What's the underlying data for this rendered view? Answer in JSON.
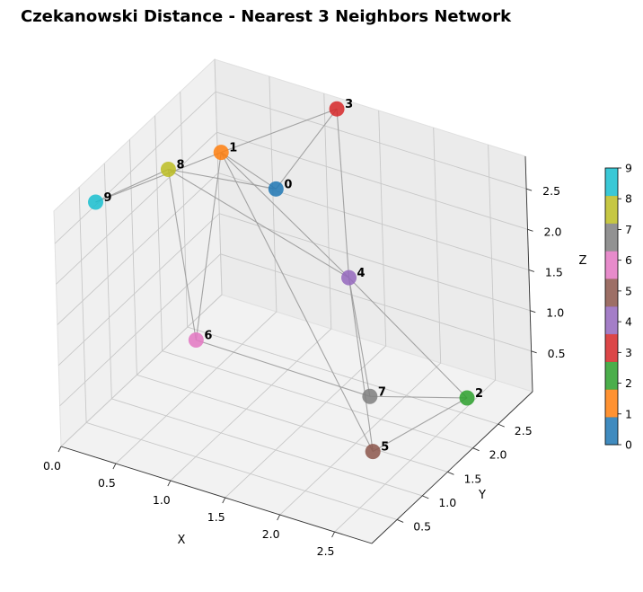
{
  "chart_data": {
    "type": "scatter",
    "title": "Czekanowski Distance - Nearest 3 Neighbors Network",
    "xlabel": "X",
    "ylabel": "Y",
    "zlabel": "Z",
    "x_ticks": [
      "0.0",
      "0.5",
      "1.0",
      "1.5",
      "2.0",
      "2.5"
    ],
    "y_ticks": [
      "0.5",
      "1.0",
      "1.5",
      "2.0",
      "2.5"
    ],
    "z_ticks": [
      "0.5",
      "1.0",
      "1.5",
      "2.0",
      "2.5"
    ],
    "colorbar_ticks": [
      "0",
      "1",
      "2",
      "3",
      "4",
      "5",
      "6",
      "7",
      "8",
      "9"
    ],
    "colormap": [
      "#1f77b4",
      "#ff7f0e",
      "#2ca02c",
      "#d62728",
      "#9467bd",
      "#8c564b",
      "#e377c2",
      "#7f7f7f",
      "#bcbd22",
      "#17becf"
    ],
    "grid": true,
    "nodes": [
      {
        "label": "0",
        "x": 1.0,
        "y": 2.2,
        "z": 2.3
      },
      {
        "label": "1",
        "x": 0.6,
        "y": 2.0,
        "z": 2.7
      },
      {
        "label": "2",
        "x": 2.8,
        "y": 2.0,
        "z": 0.6
      },
      {
        "label": "3",
        "x": 1.2,
        "y": 3.0,
        "z": 2.9
      },
      {
        "label": "4",
        "x": 1.6,
        "y": 2.3,
        "z": 1.4
      },
      {
        "label": "5",
        "x": 2.3,
        "y": 1.2,
        "z": 0.2
      },
      {
        "label": "6",
        "x": 0.7,
        "y": 1.2,
        "z": 0.9
      },
      {
        "label": "7",
        "x": 2.0,
        "y": 1.8,
        "z": 0.4
      },
      {
        "label": "8",
        "x": 0.3,
        "y": 1.6,
        "z": 2.6
      },
      {
        "label": "9",
        "x": 0.1,
        "y": 0.6,
        "z": 2.7
      }
    ],
    "edges": [
      [
        0,
        1
      ],
      [
        0,
        3
      ],
      [
        0,
        8
      ],
      [
        1,
        3
      ],
      [
        1,
        4
      ],
      [
        1,
        9
      ],
      [
        1,
        5
      ],
      [
        1,
        6
      ],
      [
        3,
        4
      ],
      [
        4,
        8
      ],
      [
        4,
        2
      ],
      [
        4,
        7
      ],
      [
        4,
        5
      ],
      [
        8,
        9
      ],
      [
        8,
        6
      ],
      [
        6,
        7
      ],
      [
        7,
        2
      ],
      [
        5,
        2
      ]
    ]
  }
}
